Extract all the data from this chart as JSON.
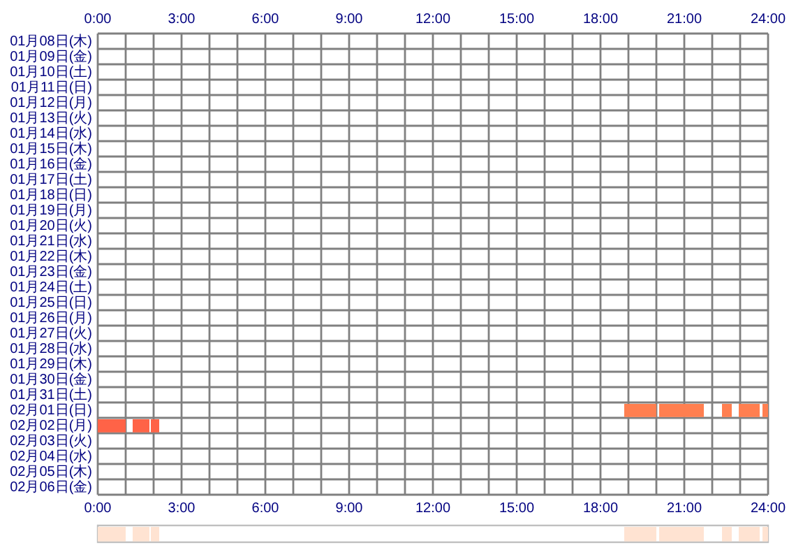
{
  "chart_data": [
    {
      "type": "bar",
      "orientation": "horizontal",
      "grid": true,
      "categories": [
        "01月08日(木)",
        "01月09日(金)",
        "01月10日(土)",
        "01月11日(日)",
        "01月12日(月)",
        "01月13日(火)",
        "01月14日(水)",
        "01月15日(木)",
        "01月16日(金)",
        "01月17日(土)",
        "01月18日(日)",
        "01月19日(月)",
        "01月20日(火)",
        "01月21日(水)",
        "01月22日(木)",
        "01月23日(金)",
        "01月24日(土)",
        "01月25日(日)",
        "01月26日(月)",
        "01月27日(火)",
        "01月28日(水)",
        "01月29日(木)",
        "01月30日(金)",
        "01月31日(土)",
        "02月01日(日)",
        "02月02日(月)",
        "02月03日(火)",
        "02月04日(水)",
        "02月05日(木)",
        "02月06日(金)"
      ],
      "series": [
        {
          "values": [
            null,
            null,
            null,
            null,
            null,
            null,
            null,
            null,
            null,
            null,
            null,
            null,
            null,
            null,
            null,
            null,
            null,
            null,
            null,
            null,
            null,
            null,
            null,
            null,
            1.15,
            1.0,
            null,
            null,
            null,
            null
          ],
          "base": [
            null,
            null,
            null,
            null,
            null,
            null,
            null,
            null,
            null,
            null,
            null,
            null,
            null,
            null,
            null,
            null,
            null,
            null,
            null,
            null,
            null,
            null,
            null,
            null,
            18.85,
            0,
            null,
            null,
            null,
            null
          ],
          "colors": [
            null,
            null,
            null,
            null,
            null,
            null,
            null,
            null,
            null,
            null,
            null,
            null,
            null,
            null,
            null,
            null,
            null,
            null,
            null,
            null,
            null,
            null,
            null,
            null,
            "#ff7f50",
            "#ff6347",
            null,
            null,
            null,
            null
          ]
        },
        {
          "values": [
            null,
            null,
            null,
            null,
            null,
            null,
            null,
            null,
            null,
            null,
            null,
            null,
            null,
            null,
            null,
            null,
            null,
            null,
            null,
            null,
            null,
            null,
            null,
            null,
            1.6,
            0.6,
            null,
            null,
            null,
            null
          ],
          "base": [
            null,
            null,
            null,
            null,
            null,
            null,
            null,
            null,
            null,
            null,
            null,
            null,
            null,
            null,
            null,
            null,
            null,
            null,
            null,
            null,
            null,
            null,
            null,
            null,
            20.1,
            1.25,
            null,
            null,
            null,
            null
          ],
          "colors": [
            null,
            null,
            null,
            null,
            null,
            null,
            null,
            null,
            null,
            null,
            null,
            null,
            null,
            null,
            null,
            null,
            null,
            null,
            null,
            null,
            null,
            null,
            null,
            null,
            "#ff7f50",
            "#ff6347",
            null,
            null,
            null,
            null
          ]
        },
        {
          "values": [
            null,
            null,
            null,
            null,
            null,
            null,
            null,
            null,
            null,
            null,
            null,
            null,
            null,
            null,
            null,
            null,
            null,
            null,
            null,
            null,
            null,
            null,
            null,
            null,
            0.35,
            0.3,
            null,
            null,
            null,
            null
          ],
          "base": [
            null,
            null,
            null,
            null,
            null,
            null,
            null,
            null,
            null,
            null,
            null,
            null,
            null,
            null,
            null,
            null,
            null,
            null,
            null,
            null,
            null,
            null,
            null,
            null,
            22.35,
            1.9,
            null,
            null,
            null,
            null
          ],
          "colors": [
            null,
            null,
            null,
            null,
            null,
            null,
            null,
            null,
            null,
            null,
            null,
            null,
            null,
            null,
            null,
            null,
            null,
            null,
            null,
            null,
            null,
            null,
            null,
            null,
            "#ff7f50",
            "#ff6347",
            null,
            null,
            null,
            null
          ]
        },
        {
          "values": [
            null,
            null,
            null,
            null,
            null,
            null,
            null,
            null,
            null,
            null,
            null,
            null,
            null,
            null,
            null,
            null,
            null,
            null,
            null,
            null,
            null,
            null,
            null,
            null,
            0.75,
            null,
            null,
            null,
            null,
            null
          ],
          "base": [
            null,
            null,
            null,
            null,
            null,
            null,
            null,
            null,
            null,
            null,
            null,
            null,
            null,
            null,
            null,
            null,
            null,
            null,
            null,
            null,
            null,
            null,
            null,
            null,
            22.95,
            null,
            null,
            null,
            null,
            null
          ],
          "colors": [
            null,
            null,
            null,
            null,
            null,
            null,
            null,
            null,
            null,
            null,
            null,
            null,
            null,
            null,
            null,
            null,
            null,
            null,
            null,
            null,
            null,
            null,
            null,
            null,
            "#ff7f50",
            null,
            null,
            null,
            null,
            null
          ]
        },
        {
          "values": [
            null,
            null,
            null,
            null,
            null,
            null,
            null,
            null,
            null,
            null,
            null,
            null,
            null,
            null,
            null,
            null,
            null,
            null,
            null,
            null,
            null,
            null,
            null,
            null,
            0.2,
            null,
            null,
            null,
            null,
            null
          ],
          "base": [
            null,
            null,
            null,
            null,
            null,
            null,
            null,
            null,
            null,
            null,
            null,
            null,
            null,
            null,
            null,
            null,
            null,
            null,
            null,
            null,
            null,
            null,
            null,
            null,
            23.8,
            null,
            null,
            null,
            null,
            null
          ],
          "colors": [
            null,
            null,
            null,
            null,
            null,
            null,
            null,
            null,
            null,
            null,
            null,
            null,
            null,
            null,
            null,
            null,
            null,
            null,
            null,
            null,
            null,
            null,
            null,
            null,
            "#ff7f50",
            null,
            null,
            null,
            null,
            null
          ]
        }
      ],
      "xlim": [
        0,
        24
      ],
      "xticks": [
        {
          "value": 0,
          "label": "0:00"
        },
        {
          "value": 1,
          "label": null
        },
        {
          "value": 2,
          "label": null
        },
        {
          "value": 3,
          "label": "3:00"
        },
        {
          "value": 4,
          "label": null
        },
        {
          "value": 5,
          "label": null
        },
        {
          "value": 6,
          "label": "6:00"
        },
        {
          "value": 7,
          "label": null
        },
        {
          "value": 8,
          "label": null
        },
        {
          "value": 9,
          "label": "9:00"
        },
        {
          "value": 10,
          "label": null
        },
        {
          "value": 11,
          "label": null
        },
        {
          "value": 12,
          "label": "12:00"
        },
        {
          "value": 13,
          "label": null
        },
        {
          "value": 14,
          "label": null
        },
        {
          "value": 15,
          "label": "15:00"
        },
        {
          "value": 16,
          "label": null
        },
        {
          "value": 17,
          "label": null
        },
        {
          "value": 18,
          "label": "18:00"
        },
        {
          "value": 19,
          "label": null
        },
        {
          "value": 20,
          "label": null
        },
        {
          "value": 21,
          "label": "21:00"
        },
        {
          "value": 22,
          "label": null
        },
        {
          "value": 23,
          "label": null
        },
        {
          "value": 24,
          "label": "24:00"
        }
      ],
      "x2lim": [
        0,
        24
      ],
      "x2ticks": [
        {
          "value": 0,
          "label": "0:00"
        },
        {
          "value": 3,
          "label": "3:00"
        },
        {
          "value": 6,
          "label": "6:00"
        },
        {
          "value": 9,
          "label": "9:00"
        },
        {
          "value": 12,
          "label": "12:00"
        },
        {
          "value": 15,
          "label": "15:00"
        },
        {
          "value": 18,
          "label": "18:00"
        },
        {
          "value": 21,
          "label": "21:00"
        },
        {
          "value": 24,
          "label": "24:00"
        }
      ]
    },
    {
      "type": "bar",
      "orientation": "horizontal",
      "categories": [
        null
      ],
      "xlim": [
        0,
        24
      ],
      "series": [
        {
          "values": [
            1.0
          ],
          "base": [
            0
          ],
          "color": "#ffe3d2"
        },
        {
          "values": [
            0.6
          ],
          "base": [
            1.25
          ],
          "color": "#ffe3d2"
        },
        {
          "values": [
            0.3
          ],
          "base": [
            1.9
          ],
          "color": "#ffe3d2"
        },
        {
          "values": [
            1.15
          ],
          "base": [
            18.85
          ],
          "color": "#ffe3d2"
        },
        {
          "values": [
            1.6
          ],
          "base": [
            20.1
          ],
          "color": "#ffe3d2"
        },
        {
          "values": [
            0.35
          ],
          "base": [
            22.35
          ],
          "color": "#ffe3d2"
        },
        {
          "values": [
            0.75
          ],
          "base": [
            22.95
          ],
          "color": "#ffe3d2"
        },
        {
          "values": [
            0.2
          ],
          "base": [
            23.8
          ],
          "color": "#ffe3d2"
        }
      ]
    }
  ]
}
